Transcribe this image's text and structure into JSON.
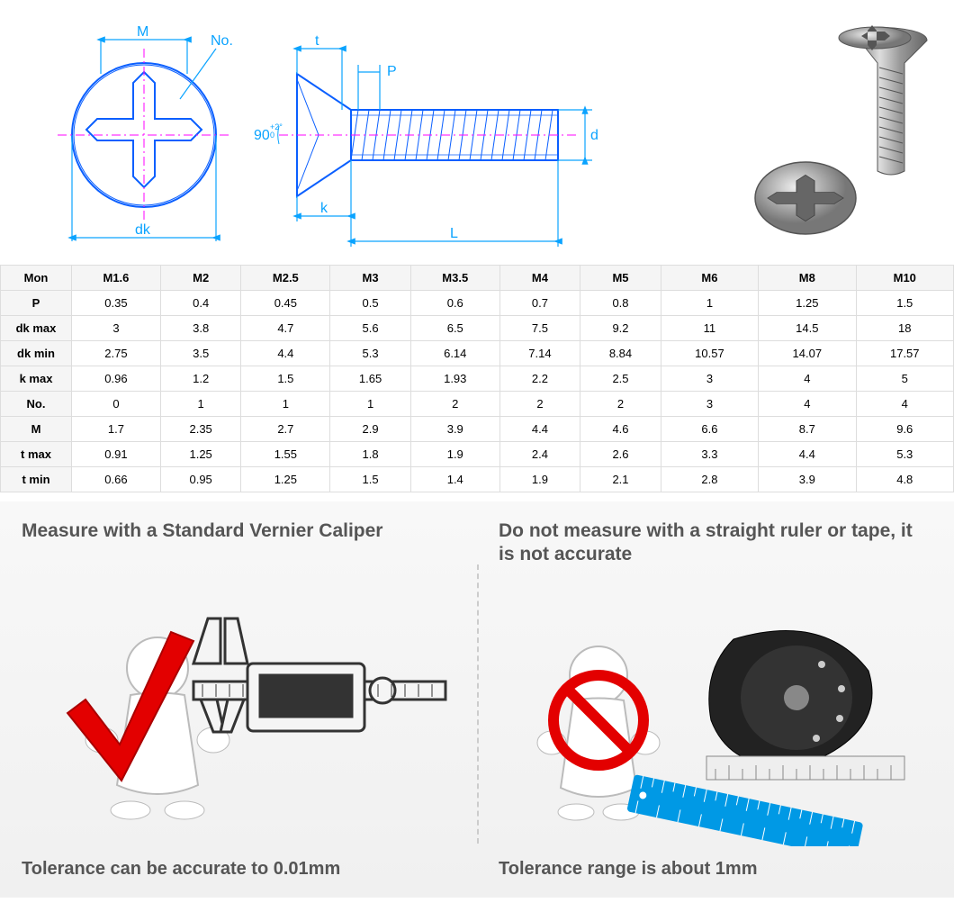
{
  "diagram": {
    "labels": {
      "M": "M",
      "No": "No.",
      "dk": "dk",
      "t": "t",
      "P": "P",
      "d": "d",
      "k": "k",
      "L": "L",
      "angle": "90",
      "angle_tol": "+2°\n0"
    },
    "line_color": "#0aa3ff",
    "outline_color": "#0a5fff",
    "center_color": "#ff00ff"
  },
  "table": {
    "columns": [
      "Mon",
      "M1.6",
      "M2",
      "M2.5",
      "M3",
      "M3.5",
      "M4",
      "M5",
      "M6",
      "M8",
      "M10"
    ],
    "rows": [
      [
        "P",
        "0.35",
        "0.4",
        "0.45",
        "0.5",
        "0.6",
        "0.7",
        "0.8",
        "1",
        "1.25",
        "1.5"
      ],
      [
        "dk max",
        "3",
        "3.8",
        "4.7",
        "5.6",
        "6.5",
        "7.5",
        "9.2",
        "11",
        "14.5",
        "18"
      ],
      [
        "dk min",
        "2.75",
        "3.5",
        "4.4",
        "5.3",
        "6.14",
        "7.14",
        "8.84",
        "10.57",
        "14.07",
        "17.57"
      ],
      [
        "k max",
        "0.96",
        "1.2",
        "1.5",
        "1.65",
        "1.93",
        "2.2",
        "2.5",
        "3",
        "4",
        "5"
      ],
      [
        "No.",
        "0",
        "1",
        "1",
        "1",
        "2",
        "2",
        "2",
        "3",
        "4",
        "4"
      ],
      [
        "M",
        "1.7",
        "2.35",
        "2.7",
        "2.9",
        "3.9",
        "4.4",
        "4.6",
        "6.6",
        "8.7",
        "9.6"
      ],
      [
        "t max",
        "0.91",
        "1.25",
        "1.55",
        "1.8",
        "1.9",
        "2.4",
        "2.6",
        "3.3",
        "4.4",
        "5.3"
      ],
      [
        "t min",
        "0.66",
        "0.95",
        "1.25",
        "1.5",
        "1.4",
        "1.9",
        "2.1",
        "2.8",
        "3.9",
        "4.8"
      ]
    ],
    "border_color": "#dddddd",
    "header_bg": "#f5f5f5"
  },
  "bottom": {
    "left": {
      "title": "Measure with a Standard Vernier Caliper",
      "footer": "Tolerance can be accurate to 0.01mm",
      "check_color": "#e30000",
      "caliper_color": "#333333"
    },
    "right": {
      "title": "Do not measure with a straight ruler or tape, it is not accurate",
      "footer": "Tolerance range is about 1mm",
      "no_color": "#e30000",
      "ruler_color": "#0099e5",
      "tape_color": "#222222"
    },
    "bg": "#f4f4f4",
    "title_color": "#555555"
  }
}
